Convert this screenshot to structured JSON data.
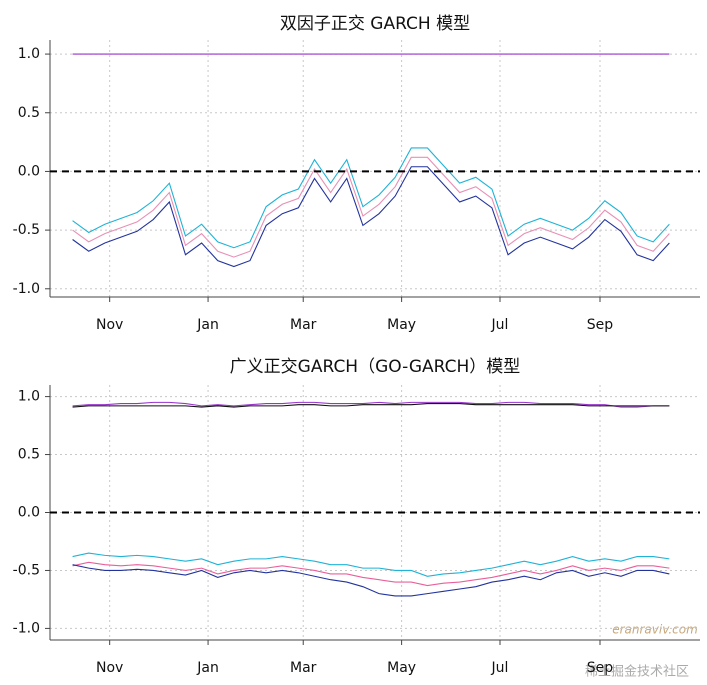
{
  "chart_data": [
    {
      "type": "line",
      "title": "双因子正交 GARCH 模型",
      "x": [
        8,
        18,
        28,
        38,
        48,
        58,
        68,
        78,
        88,
        98,
        108,
        118,
        128,
        138,
        148,
        158,
        168,
        178,
        188,
        198,
        208,
        218,
        228,
        238,
        248,
        258,
        268,
        278,
        288,
        298,
        308,
        318,
        328,
        338,
        348,
        358,
        368,
        378
      ],
      "xlim": [
        -6,
        397
      ],
      "xticks": [
        {
          "value": 31,
          "label": "Nov"
        },
        {
          "value": 92,
          "label": "Jan"
        },
        {
          "value": 151,
          "label": "Mar"
        },
        {
          "value": 212,
          "label": "May"
        },
        {
          "value": 273,
          "label": "Jul"
        },
        {
          "value": 335,
          "label": "Sep"
        }
      ],
      "ylim": [
        -1.07,
        1.12
      ],
      "yticks": [
        {
          "value": -1,
          "label": "-1.0"
        },
        {
          "value": -0.5,
          "label": "-0.5"
        },
        {
          "value": 0,
          "label": "0.0"
        },
        {
          "value": 0.5,
          "label": "0.5"
        },
        {
          "value": 1,
          "label": "1.0"
        }
      ],
      "grid": true,
      "hline": 0,
      "series": [
        {
          "color": "#9933cc",
          "values": [
            1,
            1,
            1,
            1,
            1,
            1,
            1,
            1,
            1,
            1,
            1,
            1,
            1,
            1,
            1,
            1,
            1,
            1,
            1,
            1,
            1,
            1,
            1,
            1,
            1,
            1,
            1,
            1,
            1,
            1,
            1,
            1,
            1,
            1,
            1,
            1,
            1,
            1
          ]
        },
        {
          "color": "#1fb3d6",
          "values": [
            -0.42,
            -0.52,
            -0.45,
            -0.4,
            -0.35,
            -0.25,
            -0.1,
            -0.55,
            -0.45,
            -0.6,
            -0.65,
            -0.6,
            -0.3,
            -0.2,
            -0.15,
            0.1,
            -0.1,
            0.1,
            -0.3,
            -0.2,
            -0.05,
            0.2,
            0.2,
            0.05,
            -0.1,
            -0.05,
            -0.15,
            -0.55,
            -0.45,
            -0.4,
            -0.45,
            -0.5,
            -0.4,
            -0.25,
            -0.35,
            -0.55,
            -0.6,
            -0.45
          ]
        },
        {
          "color": "#e890b4",
          "values": [
            -0.5,
            -0.6,
            -0.53,
            -0.48,
            -0.43,
            -0.33,
            -0.18,
            -0.63,
            -0.53,
            -0.68,
            -0.73,
            -0.68,
            -0.38,
            -0.28,
            -0.23,
            0.02,
            -0.18,
            0.02,
            -0.38,
            -0.28,
            -0.13,
            0.12,
            0.12,
            -0.03,
            -0.18,
            -0.13,
            -0.23,
            -0.63,
            -0.53,
            -0.48,
            -0.53,
            -0.58,
            -0.48,
            -0.33,
            -0.43,
            -0.63,
            -0.68,
            -0.53
          ]
        },
        {
          "color": "#22339e",
          "values": [
            -0.58,
            -0.68,
            -0.61,
            -0.56,
            -0.51,
            -0.41,
            -0.26,
            -0.71,
            -0.61,
            -0.76,
            -0.81,
            -0.76,
            -0.46,
            -0.36,
            -0.31,
            -0.06,
            -0.26,
            -0.06,
            -0.46,
            -0.36,
            -0.21,
            0.04,
            0.04,
            -0.11,
            -0.26,
            -0.21,
            -0.31,
            -0.71,
            -0.61,
            -0.56,
            -0.61,
            -0.66,
            -0.56,
            -0.41,
            -0.51,
            -0.71,
            -0.76,
            -0.61
          ]
        }
      ]
    },
    {
      "type": "line",
      "title": "广义正交GARCH（GO-GARCH）模型",
      "x": [
        8,
        18,
        28,
        38,
        48,
        58,
        68,
        78,
        88,
        98,
        108,
        118,
        128,
        138,
        148,
        158,
        168,
        178,
        188,
        198,
        208,
        218,
        228,
        238,
        248,
        258,
        268,
        278,
        288,
        298,
        308,
        318,
        328,
        338,
        348,
        358,
        368,
        378
      ],
      "xlim": [
        -6,
        397
      ],
      "xticks": [
        {
          "value": 31,
          "label": "Nov"
        },
        {
          "value": 92,
          "label": "Jan"
        },
        {
          "value": 151,
          "label": "Mar"
        },
        {
          "value": 212,
          "label": "May"
        },
        {
          "value": 273,
          "label": "Jul"
        },
        {
          "value": 335,
          "label": "Sep"
        }
      ],
      "ylim": [
        -1.1,
        1.1
      ],
      "yticks": [
        {
          "value": -1,
          "label": "-1.0"
        },
        {
          "value": -0.5,
          "label": "-0.5"
        },
        {
          "value": 0,
          "label": "0.0"
        },
        {
          "value": 0.5,
          "label": "0.5"
        },
        {
          "value": 1,
          "label": "1.0"
        }
      ],
      "grid": true,
      "hline": 0,
      "series": [
        {
          "color": "#9933cc",
          "values": [
            0.92,
            0.93,
            0.93,
            0.94,
            0.94,
            0.95,
            0.95,
            0.94,
            0.92,
            0.93,
            0.92,
            0.93,
            0.94,
            0.94,
            0.95,
            0.95,
            0.94,
            0.94,
            0.94,
            0.95,
            0.94,
            0.95,
            0.95,
            0.95,
            0.95,
            0.94,
            0.94,
            0.95,
            0.95,
            0.94,
            0.94,
            0.94,
            0.93,
            0.93,
            0.91,
            0.91,
            0.92,
            0.92
          ]
        },
        {
          "color": "#111111",
          "values": [
            0.91,
            0.92,
            0.92,
            0.92,
            0.92,
            0.92,
            0.92,
            0.92,
            0.91,
            0.92,
            0.91,
            0.92,
            0.92,
            0.92,
            0.93,
            0.93,
            0.92,
            0.92,
            0.93,
            0.93,
            0.93,
            0.93,
            0.94,
            0.94,
            0.94,
            0.93,
            0.93,
            0.93,
            0.93,
            0.93,
            0.93,
            0.93,
            0.92,
            0.92,
            0.92,
            0.92,
            0.92,
            0.92
          ]
        },
        {
          "color": "#1fb3d6",
          "values": [
            -0.38,
            -0.35,
            -0.37,
            -0.38,
            -0.37,
            -0.38,
            -0.4,
            -0.42,
            -0.4,
            -0.45,
            -0.42,
            -0.4,
            -0.4,
            -0.38,
            -0.4,
            -0.42,
            -0.45,
            -0.45,
            -0.48,
            -0.48,
            -0.5,
            -0.5,
            -0.55,
            -0.53,
            -0.52,
            -0.5,
            -0.48,
            -0.45,
            -0.42,
            -0.45,
            -0.42,
            -0.38,
            -0.42,
            -0.4,
            -0.42,
            -0.38,
            -0.38,
            -0.4
          ]
        },
        {
          "color": "#e8609a",
          "values": [
            -0.46,
            -0.43,
            -0.45,
            -0.46,
            -0.45,
            -0.46,
            -0.48,
            -0.5,
            -0.48,
            -0.53,
            -0.5,
            -0.48,
            -0.48,
            -0.46,
            -0.48,
            -0.5,
            -0.53,
            -0.53,
            -0.56,
            -0.58,
            -0.6,
            -0.6,
            -0.63,
            -0.61,
            -0.6,
            -0.58,
            -0.56,
            -0.53,
            -0.5,
            -0.53,
            -0.5,
            -0.46,
            -0.5,
            -0.48,
            -0.5,
            -0.46,
            -0.46,
            -0.48
          ]
        },
        {
          "color": "#22339e",
          "values": [
            -0.45,
            -0.48,
            -0.5,
            -0.5,
            -0.49,
            -0.5,
            -0.52,
            -0.54,
            -0.5,
            -0.56,
            -0.52,
            -0.5,
            -0.52,
            -0.5,
            -0.52,
            -0.55,
            -0.58,
            -0.6,
            -0.64,
            -0.7,
            -0.72,
            -0.72,
            -0.7,
            -0.68,
            -0.66,
            -0.64,
            -0.6,
            -0.58,
            -0.55,
            -0.58,
            -0.52,
            -0.5,
            -0.55,
            -0.52,
            -0.55,
            -0.5,
            -0.5,
            -0.53
          ]
        }
      ]
    }
  ],
  "watermarks": [
    "eranraviv.com",
    "稀土掘金技术社区"
  ]
}
